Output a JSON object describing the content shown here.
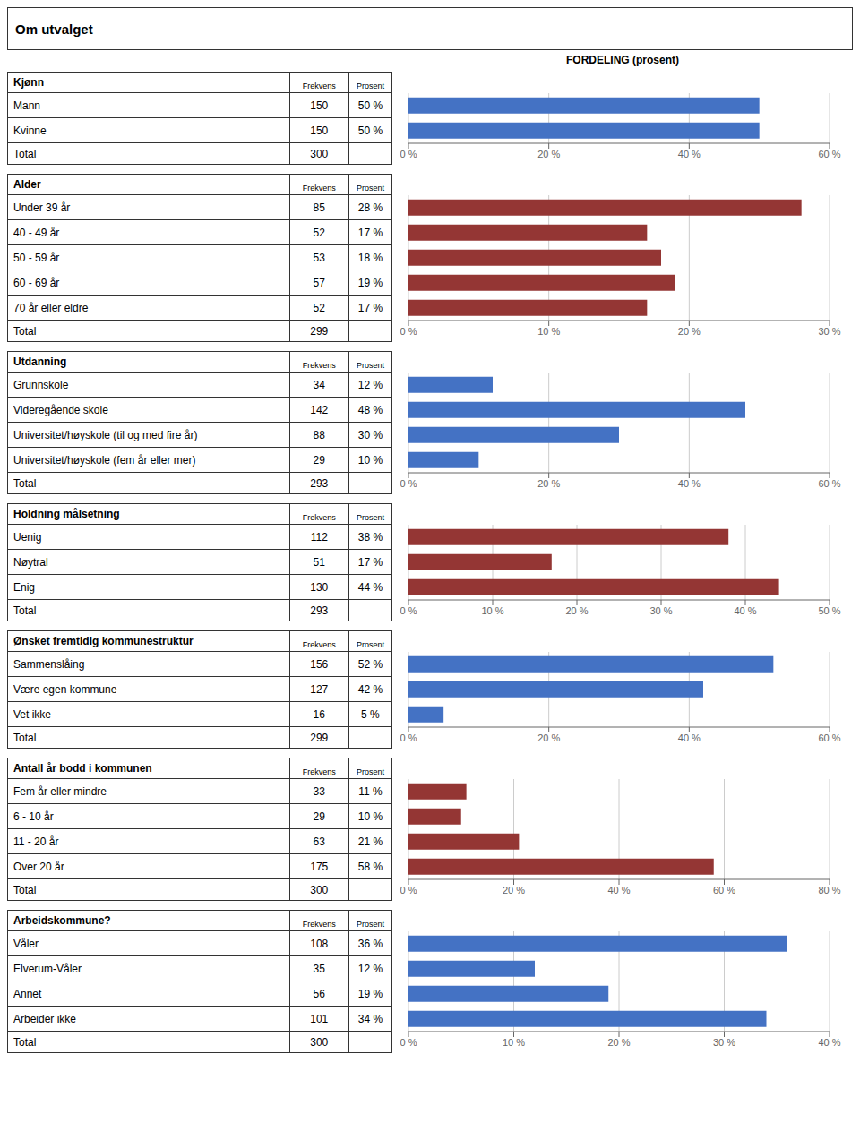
{
  "title": "Om utvalget",
  "xlabel": "FORDELING (prosent)",
  "chart_data": [
    {
      "type": "bar",
      "orientation": "horizontal",
      "title": "Kjønn",
      "column_labels": [
        "Frekvens",
        "Prosent"
      ],
      "categories": [
        "Mann",
        "Kvinne"
      ],
      "values": [
        50,
        50
      ],
      "value_labels": [
        "50 %",
        "50 %"
      ],
      "frequencies": [
        150,
        150
      ],
      "total_label": "Total",
      "total": 300,
      "color": "#4472C4",
      "xlim": [
        0,
        60
      ],
      "xticks": [
        {
          "value": 0,
          "label": "0 %"
        },
        {
          "value": 20,
          "label": "20 %"
        },
        {
          "value": 40,
          "label": "40 %"
        },
        {
          "value": 60,
          "label": "60 %"
        }
      ],
      "grid": true
    },
    {
      "type": "bar",
      "orientation": "horizontal",
      "title": "Alder",
      "column_labels": [
        "Frekvens",
        "Prosent"
      ],
      "categories": [
        "Under 39 år",
        "40 - 49 år",
        "50 - 59 år",
        "60 - 69 år",
        "70 år eller eldre"
      ],
      "values": [
        28,
        17,
        18,
        19,
        17
      ],
      "value_labels": [
        "28 %",
        "17 %",
        "18 %",
        "19 %",
        "17 %"
      ],
      "frequencies": [
        85,
        52,
        53,
        57,
        52
      ],
      "total_label": "Total",
      "total": 299,
      "color": "#943634",
      "xlim": [
        0,
        30
      ],
      "xticks": [
        {
          "value": 0,
          "label": "0 %"
        },
        {
          "value": 10,
          "label": "10 %"
        },
        {
          "value": 20,
          "label": "20 %"
        },
        {
          "value": 30,
          "label": "30 %"
        }
      ],
      "grid": true
    },
    {
      "type": "bar",
      "orientation": "horizontal",
      "title": "Utdanning",
      "column_labels": [
        "Frekvens",
        "Prosent"
      ],
      "categories": [
        "Grunnskole",
        "Videregående skole",
        "Universitet/høyskole (til og med fire år)",
        "Universitet/høyskole (fem år eller mer)"
      ],
      "values": [
        12,
        48,
        30,
        10
      ],
      "value_labels": [
        "12 %",
        "48 %",
        "30 %",
        "10 %"
      ],
      "frequencies": [
        34,
        142,
        88,
        29
      ],
      "total_label": "Total",
      "total": 293,
      "color": "#4472C4",
      "xlim": [
        0,
        60
      ],
      "xticks": [
        {
          "value": 0,
          "label": "0 %"
        },
        {
          "value": 20,
          "label": "20 %"
        },
        {
          "value": 40,
          "label": "40 %"
        },
        {
          "value": 60,
          "label": "60 %"
        }
      ],
      "grid": true
    },
    {
      "type": "bar",
      "orientation": "horizontal",
      "title": "Holdning målsetning",
      "column_labels": [
        "Frekvens",
        "Prosent"
      ],
      "categories": [
        "Uenig",
        "Nøytral",
        "Enig"
      ],
      "values": [
        38,
        17,
        44
      ],
      "value_labels": [
        "38 %",
        "17 %",
        "44 %"
      ],
      "frequencies": [
        112,
        51,
        130
      ],
      "total_label": "Total",
      "total": 293,
      "color": "#943634",
      "xlim": [
        0,
        50
      ],
      "xticks": [
        {
          "value": 0,
          "label": "0 %"
        },
        {
          "value": 10,
          "label": "10 %"
        },
        {
          "value": 20,
          "label": "20 %"
        },
        {
          "value": 30,
          "label": "30 %"
        },
        {
          "value": 40,
          "label": "40 %"
        },
        {
          "value": 50,
          "label": "50 %"
        }
      ],
      "grid": true
    },
    {
      "type": "bar",
      "orientation": "horizontal",
      "title": "Ønsket fremtidig kommunestruktur",
      "column_labels": [
        "Frekvens",
        "Prosent"
      ],
      "categories": [
        "Sammenslåing",
        "Være egen kommune",
        "Vet ikke"
      ],
      "values": [
        52,
        42,
        5
      ],
      "value_labels": [
        "52 %",
        "42 %",
        "5 %"
      ],
      "frequencies": [
        156,
        127,
        16
      ],
      "total_label": "Total",
      "total": 299,
      "color": "#4472C4",
      "xlim": [
        0,
        60
      ],
      "xticks": [
        {
          "value": 0,
          "label": "0 %"
        },
        {
          "value": 20,
          "label": "20 %"
        },
        {
          "value": 40,
          "label": "40 %"
        },
        {
          "value": 60,
          "label": "60 %"
        }
      ],
      "grid": true
    },
    {
      "type": "bar",
      "orientation": "horizontal",
      "title": "Antall år bodd i kommunen",
      "column_labels": [
        "Frekvens",
        "Prosent"
      ],
      "categories": [
        "Fem år eller mindre",
        "6 - 10 år",
        "11 - 20 år",
        "Over 20 år"
      ],
      "values": [
        11,
        10,
        21,
        58
      ],
      "value_labels": [
        "11 %",
        "10 %",
        "21 %",
        "58 %"
      ],
      "frequencies": [
        33,
        29,
        63,
        175
      ],
      "total_label": "Total",
      "total": 300,
      "color": "#943634",
      "xlim": [
        0,
        80
      ],
      "xticks": [
        {
          "value": 0,
          "label": "0 %"
        },
        {
          "value": 20,
          "label": "20 %"
        },
        {
          "value": 40,
          "label": "40 %"
        },
        {
          "value": 60,
          "label": "60 %"
        },
        {
          "value": 80,
          "label": "80 %"
        }
      ],
      "grid": true
    },
    {
      "type": "bar",
      "orientation": "horizontal",
      "title": "Arbeidskommune?",
      "column_labels": [
        "Frekvens",
        "Prosent"
      ],
      "categories": [
        "Våler",
        "Elverum-Våler",
        "Annet",
        "Arbeider ikke"
      ],
      "values": [
        36,
        12,
        19,
        34
      ],
      "value_labels": [
        "36 %",
        "12 %",
        "19 %",
        "34 %"
      ],
      "frequencies": [
        108,
        35,
        56,
        101
      ],
      "total_label": "Total",
      "total": 300,
      "color": "#4472C4",
      "xlim": [
        0,
        40
      ],
      "xticks": [
        {
          "value": 0,
          "label": "0 %"
        },
        {
          "value": 10,
          "label": "10 %"
        },
        {
          "value": 20,
          "label": "20 %"
        },
        {
          "value": 30,
          "label": "30 %"
        },
        {
          "value": 40,
          "label": "40 %"
        }
      ],
      "grid": true
    }
  ]
}
